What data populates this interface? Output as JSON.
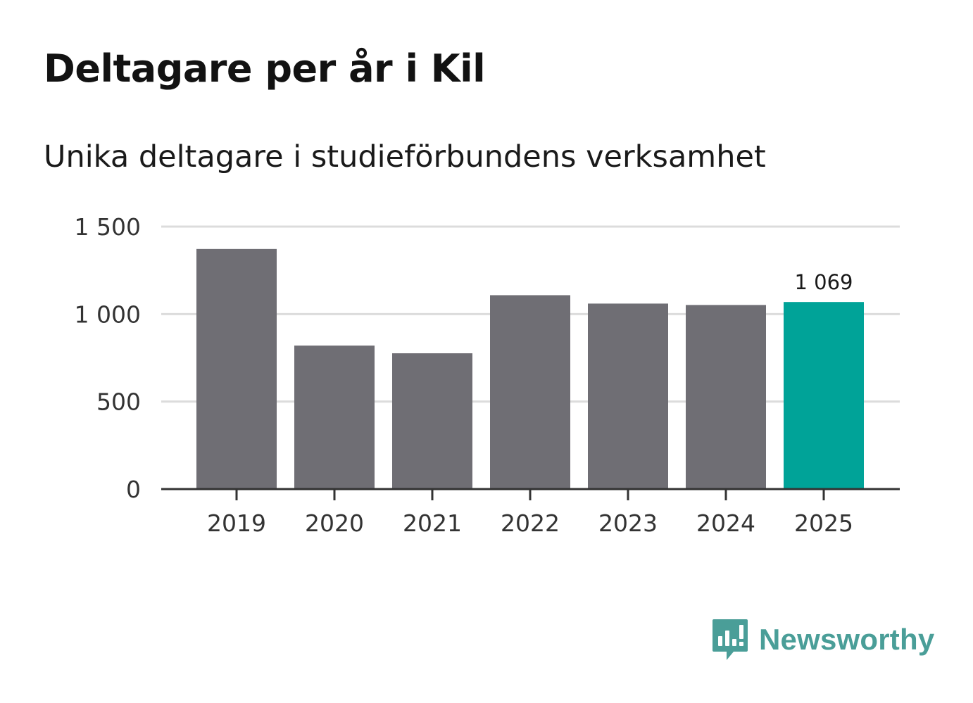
{
  "header": {
    "title": "Deltagare per år i Kil",
    "subtitle": "Unika deltagare i studieförbundens verksamhet"
  },
  "brand": {
    "name": "Newsworthy",
    "color": "#4a9e98"
  },
  "colors": {
    "bar_default": "#6f6e74",
    "bar_highlight": "#00a398",
    "grid": "#dcdcdc",
    "axis": "#333333"
  },
  "chart_data": {
    "type": "bar",
    "title": "Deltagare per år i Kil",
    "subtitle": "Unika deltagare i studieförbundens verksamhet",
    "xlabel": "",
    "ylabel": "",
    "categories": [
      "2019",
      "2020",
      "2021",
      "2022",
      "2023",
      "2024",
      "2025"
    ],
    "values": [
      1372,
      820,
      776,
      1108,
      1060,
      1052,
      1069
    ],
    "highlight_index": 6,
    "ylim": [
      0,
      1500
    ],
    "yticks": [
      0,
      500,
      1000,
      1500
    ],
    "ytick_labels": [
      "0",
      "500",
      "1 000",
      "1 500"
    ],
    "data_labels": [
      {
        "index": 6,
        "text": "1 069"
      }
    ],
    "grid": true,
    "legend": "none"
  }
}
